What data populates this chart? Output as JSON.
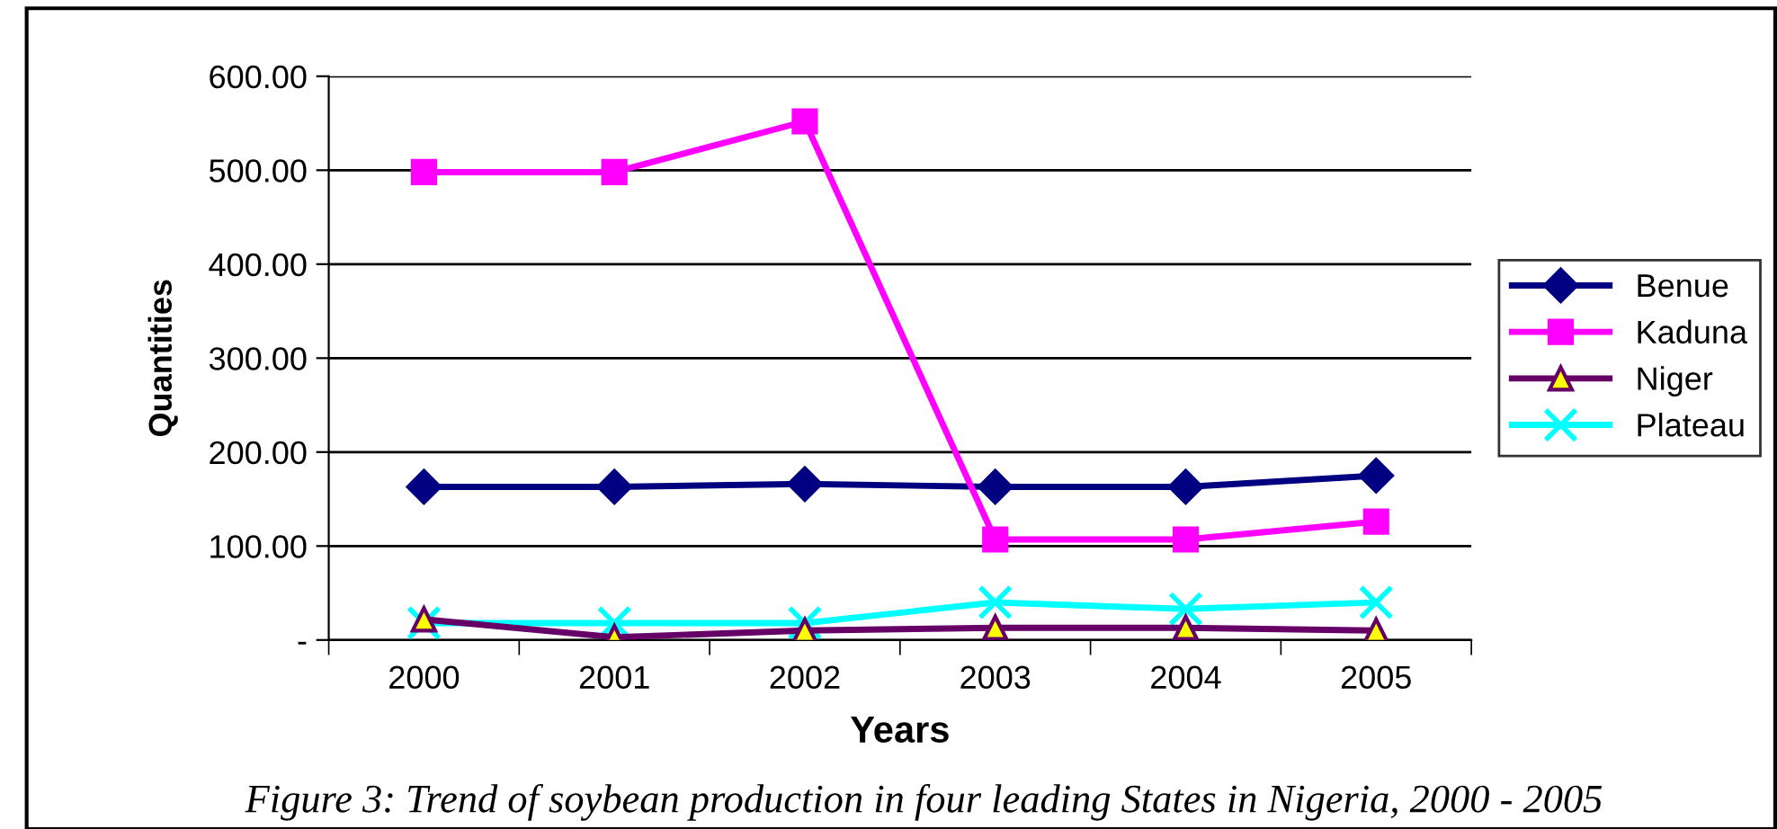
{
  "chart_data": {
    "type": "line",
    "xlabel": "Years",
    "ylabel": "Quantities",
    "categories": [
      "2000",
      "2001",
      "2002",
      "2003",
      "2004",
      "2005"
    ],
    "series": [
      {
        "name": "Benue",
        "color": "#000080",
        "marker": "diamond",
        "values": [
          163,
          163,
          166,
          163,
          163,
          175
        ]
      },
      {
        "name": "Kaduna",
        "color": "#ff00ff",
        "marker": "square",
        "values": [
          498,
          498,
          552,
          107,
          107,
          126
        ]
      },
      {
        "name": "Niger",
        "color": "#660066",
        "marker": "triangle",
        "values": [
          22,
          3,
          10,
          13,
          13,
          10
        ]
      },
      {
        "name": "Plateau",
        "color": "#00ffff",
        "marker": "cross",
        "values": [
          18,
          18,
          18,
          40,
          33,
          40
        ]
      }
    ],
    "ylim": [
      0,
      600
    ],
    "yticks": [
      {
        "value": 0,
        "label": "-"
      },
      {
        "value": 100,
        "label": "100.00"
      },
      {
        "value": 200,
        "label": "200.00"
      },
      {
        "value": 300,
        "label": "300.00"
      },
      {
        "value": 400,
        "label": "400.00"
      },
      {
        "value": 500,
        "label": "500.00"
      },
      {
        "value": 600,
        "label": "600.00"
      }
    ],
    "grid": "y",
    "legend": "right",
    "annotations": [
      "Figure 3: Trend of soybean production in four leading States in Nigeria, 2000 - 2005"
    ]
  }
}
